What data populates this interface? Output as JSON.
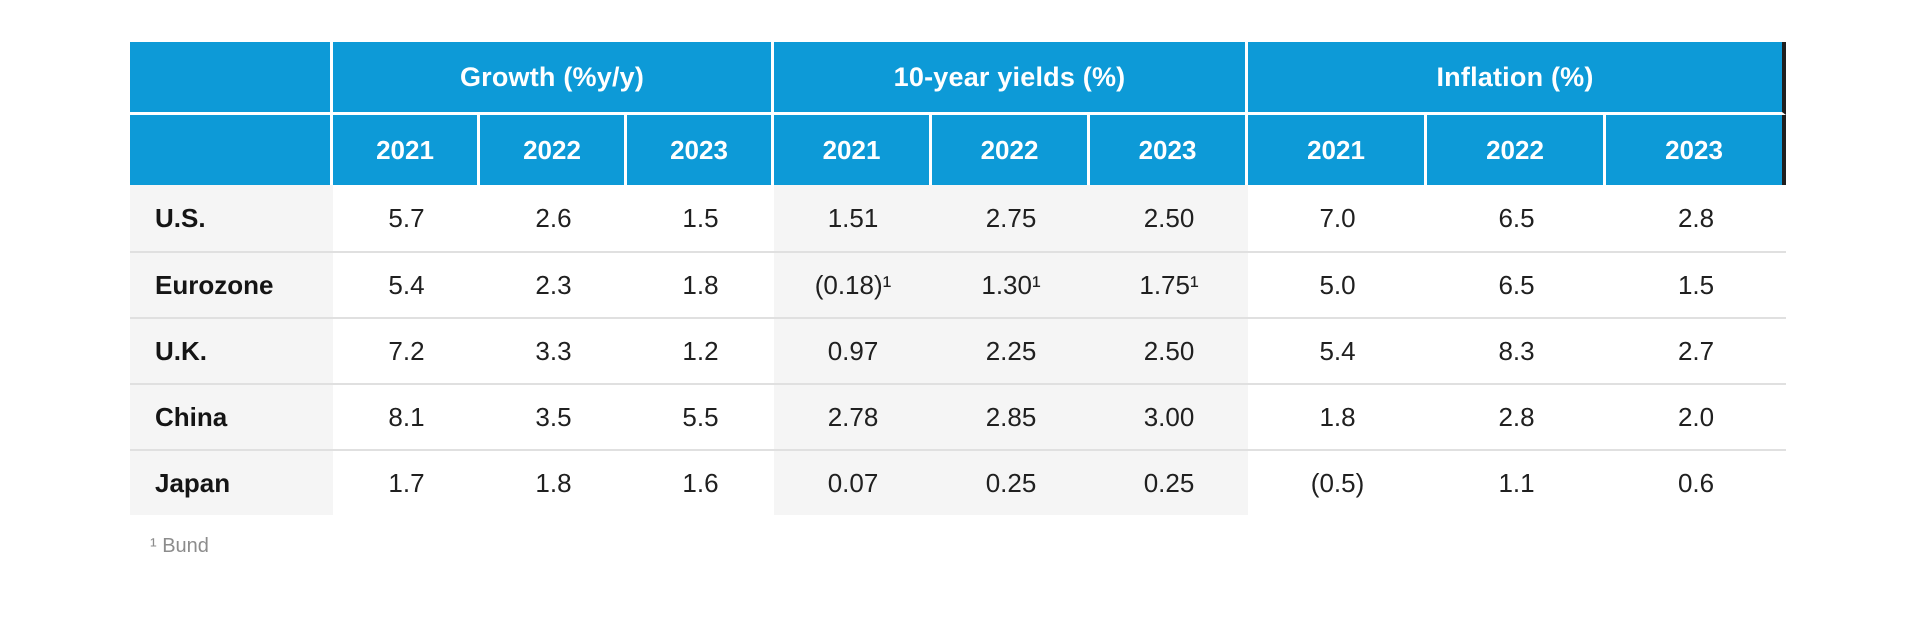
{
  "chart_data": {
    "type": "table",
    "column_groups": [
      {
        "label": "Growth (%y/y)",
        "years": [
          "2021",
          "2022",
          "2023"
        ]
      },
      {
        "label": "10-year yields (%)",
        "years": [
          "2021",
          "2022",
          "2023"
        ]
      },
      {
        "label": "Inflation (%)",
        "years": [
          "2021",
          "2022",
          "2023"
        ]
      }
    ],
    "rows": [
      {
        "label": "U.S.",
        "growth": [
          "5.7",
          "2.6",
          "1.5"
        ],
        "yields": [
          "1.51",
          "2.75",
          "2.50"
        ],
        "inflation": [
          "7.0",
          "6.5",
          "2.8"
        ]
      },
      {
        "label": "Eurozone",
        "growth": [
          "5.4",
          "2.3",
          "1.8"
        ],
        "yields": [
          "(0.18)¹",
          "1.30¹",
          "1.75¹"
        ],
        "inflation": [
          "5.0",
          "6.5",
          "1.5"
        ]
      },
      {
        "label": "U.K.",
        "growth": [
          "7.2",
          "3.3",
          "1.2"
        ],
        "yields": [
          "0.97",
          "2.25",
          "2.50"
        ],
        "inflation": [
          "5.4",
          "8.3",
          "2.7"
        ]
      },
      {
        "label": "China",
        "growth": [
          "8.1",
          "3.5",
          "5.5"
        ],
        "yields": [
          "2.78",
          "2.85",
          "3.00"
        ],
        "inflation": [
          "1.8",
          "2.8",
          "2.0"
        ]
      },
      {
        "label": "Japan",
        "growth": [
          "1.7",
          "1.8",
          "1.6"
        ],
        "yields": [
          "0.07",
          "0.25",
          "0.25"
        ],
        "inflation": [
          "(0.5)",
          "1.1",
          "0.6"
        ]
      }
    ],
    "footnote": "¹ Bund"
  },
  "colors": {
    "header_blue": "#0d9ad7",
    "shaded_bg": "#f5f5f5",
    "separator": "#e0e0e0",
    "edge_dark": "#1f1f1f",
    "body_text": "#202020",
    "footnote_gray": "#8c8c8c"
  }
}
